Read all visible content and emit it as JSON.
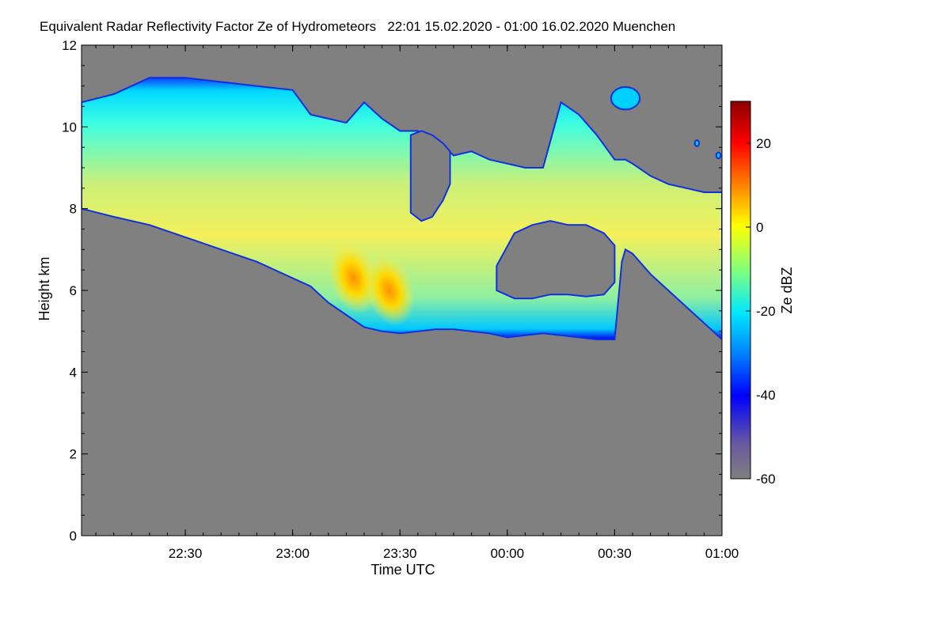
{
  "chart_data": {
    "type": "heatmap",
    "title": "Equivalent Radar Reflectivity Factor Ze of Hydrometeors   22:01 15.02.2020 - 01:00 16.02.2020 Muenchen",
    "xlabel": "Time UTC",
    "ylabel": "Height km",
    "colorbar_label": "Ze dBZ",
    "x_range_minutes": [
      -119,
      60
    ],
    "y_range_km": [
      0,
      12
    ],
    "z_range_dbz": [
      -60,
      30
    ],
    "x_ticks": [
      {
        "label": "22:30",
        "minutes": -90
      },
      {
        "label": "23:00",
        "minutes": -60
      },
      {
        "label": "23:30",
        "minutes": -30
      },
      {
        "label": "00:00",
        "minutes": 0
      },
      {
        "label": "00:30",
        "minutes": 30
      },
      {
        "label": "01:00",
        "minutes": 60
      }
    ],
    "y_ticks": [
      0,
      2,
      4,
      6,
      8,
      10,
      12
    ],
    "colorbar_ticks": [
      20,
      0,
      -20,
      -40,
      -60
    ],
    "background_color": "#808080",
    "cloud_profile": {
      "minutes": [
        -119,
        -110,
        -100,
        -90,
        -80,
        -70,
        -60,
        -55,
        -50,
        -45,
        -40,
        -35,
        -30,
        -25,
        -20,
        -15,
        -10,
        -5,
        0,
        5,
        10,
        15,
        20,
        25,
        30,
        32,
        33,
        35,
        40,
        45,
        50,
        55,
        60
      ],
      "base_km": [
        8.0,
        7.8,
        7.6,
        7.3,
        7.0,
        6.7,
        6.3,
        6.1,
        5.7,
        5.4,
        5.1,
        5.0,
        4.95,
        5.0,
        5.05,
        5.05,
        5.0,
        4.95,
        4.85,
        4.9,
        4.95,
        4.9,
        4.85,
        4.8,
        4.8,
        6.7,
        7.0,
        6.9,
        6.4,
        6.0,
        5.6,
        5.2,
        4.8
      ],
      "top_km": [
        10.6,
        10.8,
        11.2,
        11.2,
        11.1,
        11.0,
        10.9,
        10.3,
        10.2,
        10.1,
        10.6,
        10.2,
        9.9,
        9.9,
        9.7,
        9.3,
        9.4,
        9.2,
        9.1,
        9.0,
        9.0,
        10.6,
        10.3,
        9.8,
        9.2,
        9.2,
        9.2,
        9.1,
        8.8,
        8.6,
        8.5,
        8.4,
        8.4
      ]
    },
    "cloud_gap": {
      "minutes": [
        -3,
        2,
        7,
        12,
        17,
        22,
        27,
        30
      ],
      "top_km": [
        6.6,
        7.4,
        7.6,
        7.7,
        7.6,
        7.6,
        7.4,
        7.1
      ],
      "bottom_km": [
        6.0,
        5.8,
        5.8,
        5.9,
        5.9,
        5.85,
        5.9,
        6.2
      ]
    },
    "cloud_notch": {
      "minutes": [
        -27,
        -24,
        -21,
        -18,
        -16
      ],
      "top_km": [
        9.8,
        9.9,
        9.8,
        9.6,
        9.4
      ],
      "bottom_km": [
        7.9,
        7.7,
        7.8,
        8.2,
        8.6
      ]
    },
    "isolated_patches": [
      {
        "minutes": 33,
        "height_km": 10.7,
        "width_min": 8,
        "height_span_km": 0.55
      },
      {
        "minutes": 53,
        "height_km": 9.6,
        "width_min": 1.2,
        "height_span_km": 0.15
      },
      {
        "minutes": 59,
        "height_km": 9.3,
        "width_min": 1.2,
        "height_span_km": 0.15
      }
    ],
    "reflectivity_cores": [
      {
        "minutes": -43,
        "height_km": 6.3,
        "peak_dbz": 5
      },
      {
        "minutes": -33,
        "height_km": 6.0,
        "peak_dbz": 2
      }
    ]
  }
}
